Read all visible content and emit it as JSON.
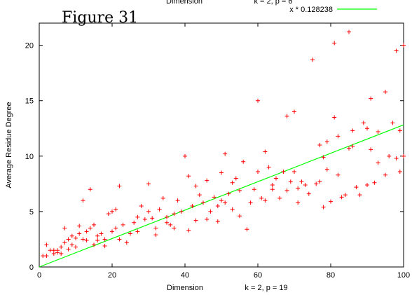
{
  "figure_title": "Figure 31",
  "clipped_top": {
    "xlabel": "Dimension",
    "params": "k = 2, p = 6"
  },
  "chart_data": {
    "type": "scatter",
    "xlabel": "Dimension",
    "ylabel": "Average Residue Degree",
    "params_label": "k = 2, p = 19",
    "xlim": [
      0,
      100
    ],
    "ylim": [
      0,
      22
    ],
    "xticks": [
      "0",
      "20",
      "40",
      "60",
      "80",
      "100"
    ],
    "yticks": [
      "0",
      "5",
      "10",
      "15",
      "20"
    ],
    "xtick_values": [
      0,
      20,
      40,
      60,
      80,
      100
    ],
    "ytick_values": [
      0,
      5,
      10,
      15,
      20
    ],
    "grid": false,
    "legend_position": "top-right",
    "colors": {
      "points": "#ff0000",
      "fit": "#00ff00",
      "axes": "#000000"
    },
    "fit": {
      "name": "x * 0.128238",
      "slope": 0.128238
    },
    "points": [
      [
        1,
        1.0
      ],
      [
        2,
        1.0
      ],
      [
        2,
        2.0
      ],
      [
        3,
        1.5
      ],
      [
        4,
        1.5
      ],
      [
        4,
        1.2
      ],
      [
        5,
        1.3
      ],
      [
        5,
        1.5
      ],
      [
        6,
        1.8
      ],
      [
        6,
        1.2
      ],
      [
        7,
        2.2
      ],
      [
        7,
        3.5
      ],
      [
        8,
        1.6
      ],
      [
        8,
        2.5
      ],
      [
        9,
        2.0
      ],
      [
        9,
        2.8
      ],
      [
        10,
        1.8
      ],
      [
        10,
        2.6
      ],
      [
        11,
        3.0
      ],
      [
        11,
        3.7
      ],
      [
        12,
        2.5
      ],
      [
        12,
        6.0
      ],
      [
        13,
        2.4
      ],
      [
        13,
        3.2
      ],
      [
        14,
        7.0
      ],
      [
        14,
        3.5
      ],
      [
        15,
        3.8
      ],
      [
        15,
        2.0
      ],
      [
        16,
        2.8
      ],
      [
        16,
        2.4
      ],
      [
        17,
        3.0
      ],
      [
        18,
        2.5
      ],
      [
        18,
        1.9
      ],
      [
        19,
        4.8
      ],
      [
        20,
        3.2
      ],
      [
        20,
        5.0
      ],
      [
        21,
        5.2
      ],
      [
        21,
        3.5
      ],
      [
        22,
        2.5
      ],
      [
        22,
        7.3
      ],
      [
        23,
        3.8
      ],
      [
        24,
        2.2
      ],
      [
        25,
        3.0
      ],
      [
        26,
        4.0
      ],
      [
        27,
        4.5
      ],
      [
        27,
        3.2
      ],
      [
        28,
        5.5
      ],
      [
        29,
        4.3
      ],
      [
        30,
        5.0
      ],
      [
        30,
        7.5
      ],
      [
        31,
        4.4
      ],
      [
        32,
        3.5
      ],
      [
        32,
        2.9
      ],
      [
        33,
        5.2
      ],
      [
        34,
        6.2
      ],
      [
        35,
        4.5
      ],
      [
        35,
        4.0
      ],
      [
        36,
        3.8
      ],
      [
        37,
        4.8
      ],
      [
        37,
        3.5
      ],
      [
        38,
        6.0
      ],
      [
        39,
        5.0
      ],
      [
        40,
        10.0
      ],
      [
        41,
        3.3
      ],
      [
        41,
        8.2
      ],
      [
        42,
        5.5
      ],
      [
        43,
        7.3
      ],
      [
        43,
        4.2
      ],
      [
        44,
        6.5
      ],
      [
        45,
        5.8
      ],
      [
        46,
        4.3
      ],
      [
        46,
        7.8
      ],
      [
        47,
        5.0
      ],
      [
        48,
        6.3
      ],
      [
        49,
        5.5
      ],
      [
        49,
        4.1
      ],
      [
        50,
        8.5
      ],
      [
        50,
        6.0
      ],
      [
        51,
        10.2
      ],
      [
        51,
        5.8
      ],
      [
        52,
        6.6
      ],
      [
        53,
        7.6
      ],
      [
        53,
        5.2
      ],
      [
        54,
        8.0
      ],
      [
        55,
        6.9
      ],
      [
        55,
        4.6
      ],
      [
        56,
        9.5
      ],
      [
        57,
        3.4
      ],
      [
        58,
        5.8
      ],
      [
        59,
        7.0
      ],
      [
        60,
        15.0
      ],
      [
        60,
        8.6
      ],
      [
        61,
        6.2
      ],
      [
        62,
        10.4
      ],
      [
        62,
        6.0
      ],
      [
        63,
        9.0
      ],
      [
        64,
        7.4
      ],
      [
        64,
        7.0
      ],
      [
        65,
        8.0
      ],
      [
        66,
        6.2
      ],
      [
        67,
        8.6
      ],
      [
        68,
        13.6
      ],
      [
        68,
        6.9
      ],
      [
        69,
        7.7
      ],
      [
        70,
        14.0
      ],
      [
        70,
        8.6
      ],
      [
        71,
        5.8
      ],
      [
        71,
        7.1
      ],
      [
        72,
        7.7
      ],
      [
        73,
        7.4
      ],
      [
        74,
        6.6
      ],
      [
        75,
        18.7
      ],
      [
        76,
        7.5
      ],
      [
        77,
        7.7
      ],
      [
        77,
        11.0
      ],
      [
        78,
        9.9
      ],
      [
        78,
        5.4
      ],
      [
        79,
        8.8
      ],
      [
        79,
        11.3
      ],
      [
        80,
        5.9
      ],
      [
        81,
        20.2
      ],
      [
        81,
        13.5
      ],
      [
        82,
        8.3
      ],
      [
        82,
        11.8
      ],
      [
        83,
        6.3
      ],
      [
        84,
        6.5
      ],
      [
        85,
        21.2
      ],
      [
        85,
        10.7
      ],
      [
        86,
        10.9
      ],
      [
        86,
        12.3
      ],
      [
        87,
        7.2
      ],
      [
        88,
        6.5
      ],
      [
        89,
        13.0
      ],
      [
        90,
        7.4
      ],
      [
        90,
        12.5
      ],
      [
        91,
        15.2
      ],
      [
        91,
        10.6
      ],
      [
        92,
        7.6
      ],
      [
        93,
        9.4
      ],
      [
        93,
        12.2
      ],
      [
        95,
        15.8
      ],
      [
        95,
        8.3
      ],
      [
        96,
        10.0
      ],
      [
        97,
        13.0
      ],
      [
        98,
        19.5
      ],
      [
        98,
        9.8
      ],
      [
        99,
        12.3
      ],
      [
        99,
        8.6
      ],
      [
        100,
        10.0
      ],
      [
        100,
        20.0
      ]
    ]
  }
}
